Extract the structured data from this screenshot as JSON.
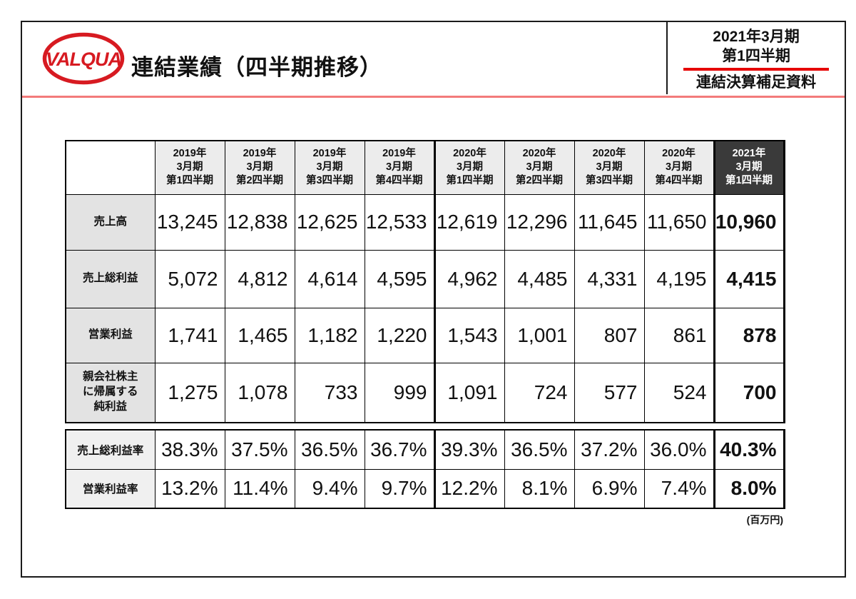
{
  "page": {
    "logo_text": "VALQUA",
    "title": "連結業績（四半期推移）",
    "period_line1": "2021年3月期",
    "period_line2": "第1四半期",
    "subtitle": "連結決算補足資料",
    "unit_note": "(百万円)"
  },
  "colors": {
    "brand-red": "#d71a21",
    "rule-red": "#f37b7b",
    "underline-red": "#e60000",
    "border-black": "#1a1a1a",
    "header-bg": "#ececec",
    "label-bg": "#e3e3e3",
    "ratio-label-bg": "#f0f0f0",
    "highlight-bg": "#3a3a3a",
    "highlight-fg": "#ffffff"
  },
  "table": {
    "type": "table",
    "unit": "百万円",
    "column_headers": [
      {
        "lines": [
          "2019年",
          "3月期",
          "第1四半期"
        ],
        "highlight": false
      },
      {
        "lines": [
          "2019年",
          "3月期",
          "第2四半期"
        ],
        "highlight": false
      },
      {
        "lines": [
          "2019年",
          "3月期",
          "第3四半期"
        ],
        "highlight": false
      },
      {
        "lines": [
          "2019年",
          "3月期",
          "第4四半期"
        ],
        "highlight": false
      },
      {
        "lines": [
          "2020年",
          "3月期",
          "第1四半期"
        ],
        "highlight": false
      },
      {
        "lines": [
          "2020年",
          "3月期",
          "第2四半期"
        ],
        "highlight": false
      },
      {
        "lines": [
          "2020年",
          "3月期",
          "第3四半期"
        ],
        "highlight": false
      },
      {
        "lines": [
          "2020年",
          "3月期",
          "第4四半期"
        ],
        "highlight": false
      },
      {
        "lines": [
          "2021年",
          "3月期",
          "第1四半期"
        ],
        "highlight": true
      }
    ],
    "rows": [
      {
        "label": "売上高",
        "values": [
          "13,245",
          "12,838",
          "12,625",
          "12,533",
          "12,619",
          "12,296",
          "11,645",
          "11,650",
          "10,960"
        ]
      },
      {
        "label": "売上総利益",
        "values": [
          "5,072",
          "4,812",
          "4,614",
          "4,595",
          "4,962",
          "4,485",
          "4,331",
          "4,195",
          "4,415"
        ]
      },
      {
        "label": "営業利益",
        "values": [
          "1,741",
          "1,465",
          "1,182",
          "1,220",
          "1,543",
          "1,001",
          "807",
          "861",
          "878"
        ]
      },
      {
        "label": "親会社株主に帰属する純利益",
        "label_lines": [
          "親会社株主",
          "に帰属する",
          "純利益"
        ],
        "values": [
          "1,275",
          "1,078",
          "733",
          "999",
          "1,091",
          "724",
          "577",
          "524",
          "700"
        ]
      }
    ],
    "ratio_rows": [
      {
        "label": "売上総利益率",
        "values": [
          "38.3%",
          "37.5%",
          "36.5%",
          "36.7%",
          "39.3%",
          "36.5%",
          "37.2%",
          "36.0%",
          "40.3%"
        ]
      },
      {
        "label": "営業利益率",
        "values": [
          "13.2%",
          "11.4%",
          "9.4%",
          "9.7%",
          "12.2%",
          "8.1%",
          "6.9%",
          "7.4%",
          "8.0%"
        ]
      }
    ]
  }
}
